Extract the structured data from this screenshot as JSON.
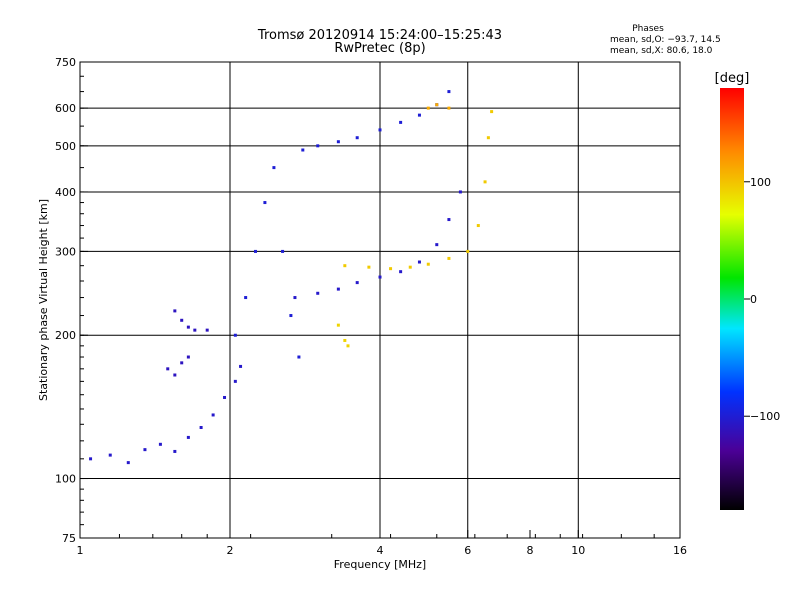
{
  "header": {
    "title": "Tromsø 20120914 15:24:00–15:25:43",
    "subtitle": "RwPretec (8p)",
    "phase_heading": "Phases",
    "phase_o": "mean, sd,O: −93.7, 14.5",
    "phase_x": "mean, sd,X: 80.6, 18.0"
  },
  "colorbar": {
    "label": "[deg]",
    "range": [
      -180,
      180
    ],
    "ticks": [
      "100",
      "0",
      "−100"
    ],
    "tick_values": [
      100,
      0,
      -100
    ]
  },
  "chart_data": {
    "type": "scatter",
    "xlabel": "Frequency [MHz]",
    "ylabel": "Stationary phase Virtual Height [km]",
    "x_scale": "log",
    "y_scale": "log",
    "xlim": [
      1,
      16
    ],
    "ylim": [
      75,
      750
    ],
    "x_ticks": [
      1,
      2,
      4,
      6,
      8,
      10,
      16
    ],
    "x_tick_labels": [
      "1",
      "2",
      "4",
      "6",
      "8",
      "10",
      "16"
    ],
    "y_ticks": [
      75,
      100,
      200,
      300,
      400,
      500,
      600,
      750
    ],
    "y_tick_labels": [
      "75",
      "100",
      "200",
      "300",
      "400",
      "500",
      "600",
      "750"
    ],
    "grid_x": [
      2,
      4,
      6,
      10
    ],
    "grid_y": [
      100,
      200,
      300,
      400,
      500,
      600
    ],
    "grid": true,
    "color_encoding": "phase in degrees",
    "series": [
      {
        "points": [
          [
            1.05,
            110
          ],
          [
            1.15,
            112
          ],
          [
            1.25,
            108
          ],
          [
            1.35,
            115
          ],
          [
            1.45,
            118
          ],
          [
            1.55,
            114
          ],
          [
            1.65,
            122
          ],
          [
            1.75,
            128
          ],
          [
            1.85,
            136
          ],
          [
            1.95,
            148
          ],
          [
            2.05,
            160
          ],
          [
            2.1,
            172
          ]
        ],
        "phase": -105
      },
      {
        "points": [
          [
            1.55,
            225
          ],
          [
            1.6,
            215
          ],
          [
            1.65,
            208
          ],
          [
            1.7,
            205
          ],
          [
            1.8,
            205
          ]
        ],
        "phase": -110
      },
      {
        "points": [
          [
            1.5,
            170
          ],
          [
            1.55,
            165
          ],
          [
            1.6,
            175
          ],
          [
            1.65,
            180
          ]
        ],
        "phase": -110
      },
      {
        "points": [
          [
            2.05,
            200
          ],
          [
            2.15,
            240
          ],
          [
            2.25,
            300
          ],
          [
            2.35,
            380
          ],
          [
            2.45,
            450
          ],
          [
            2.55,
            300
          ],
          [
            2.65,
            220
          ],
          [
            2.75,
            180
          ]
        ],
        "phase": -100
      },
      {
        "points": [
          [
            2.8,
            490
          ],
          [
            3.0,
            500
          ],
          [
            3.3,
            510
          ],
          [
            3.6,
            520
          ],
          [
            4.0,
            540
          ],
          [
            4.4,
            560
          ],
          [
            4.8,
            580
          ],
          [
            5.2,
            610
          ],
          [
            5.5,
            650
          ]
        ],
        "phase": -100
      },
      {
        "points": [
          [
            2.7,
            240
          ],
          [
            3.0,
            245
          ],
          [
            3.3,
            250
          ],
          [
            3.6,
            258
          ],
          [
            4.0,
            265
          ],
          [
            4.4,
            272
          ],
          [
            4.8,
            285
          ],
          [
            5.2,
            310
          ],
          [
            5.5,
            350
          ],
          [
            5.8,
            400
          ]
        ],
        "phase": -105
      },
      {
        "points": [
          [
            3.4,
            280
          ],
          [
            3.8,
            278
          ],
          [
            4.2,
            276
          ],
          [
            4.6,
            278
          ],
          [
            5.0,
            282
          ],
          [
            5.5,
            290
          ],
          [
            6.0,
            300
          ],
          [
            6.3,
            340
          ],
          [
            6.5,
            420
          ],
          [
            6.6,
            520
          ],
          [
            6.7,
            590
          ]
        ],
        "phase": 95
      },
      {
        "points": [
          [
            3.3,
            210
          ],
          [
            3.4,
            195
          ],
          [
            3.45,
            190
          ]
        ],
        "phase": 90
      },
      {
        "points": [
          [
            5.0,
            600
          ],
          [
            5.2,
            610
          ],
          [
            5.5,
            600
          ]
        ],
        "phase": 110
      }
    ]
  }
}
